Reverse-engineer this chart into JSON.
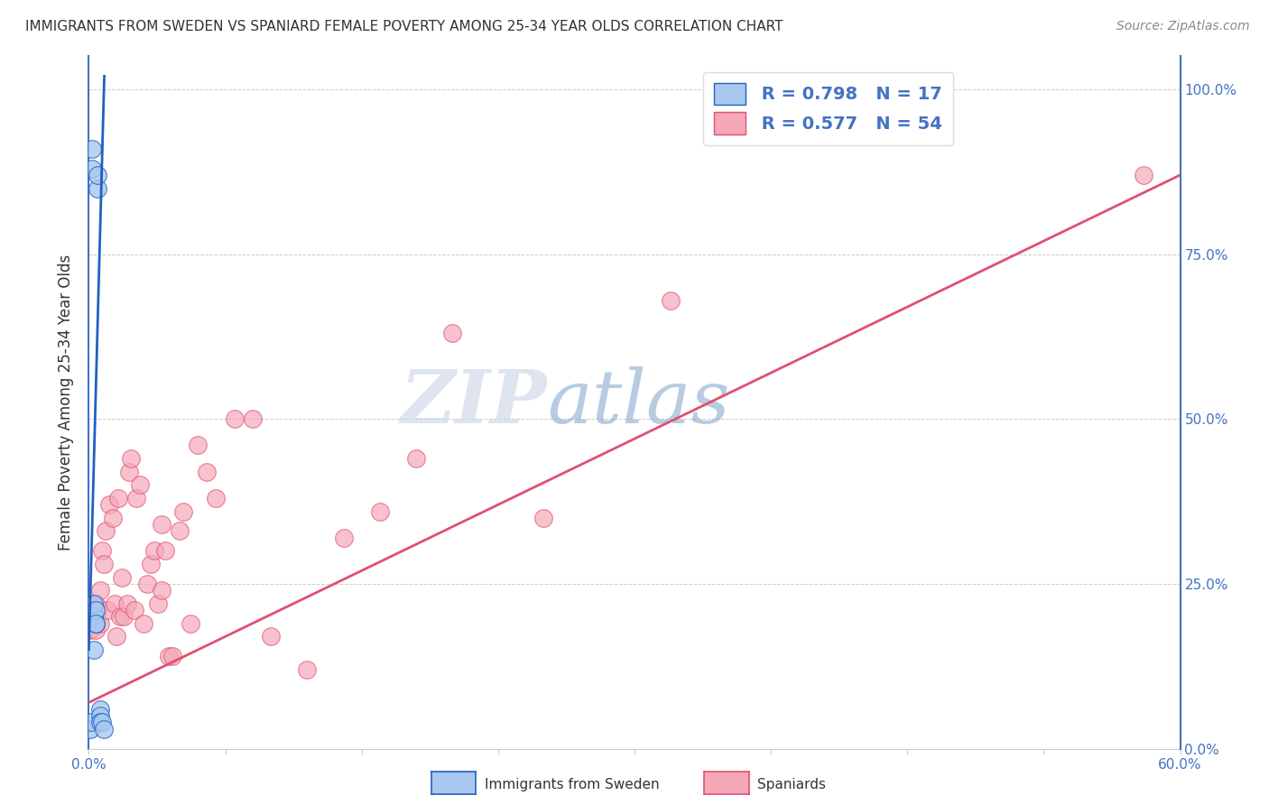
{
  "title": "IMMIGRANTS FROM SWEDEN VS SPANIARD FEMALE POVERTY AMONG 25-34 YEAR OLDS CORRELATION CHART",
  "source": "Source: ZipAtlas.com",
  "ylabel": "Female Poverty Among 25-34 Year Olds",
  "legend_blue_r": "R = 0.798",
  "legend_blue_n": "N = 17",
  "legend_pink_r": "R = 0.577",
  "legend_pink_n": "N = 54",
  "legend_label_blue": "Immigrants from Sweden",
  "legend_label_pink": "Spaniards",
  "blue_color": "#a8c8f0",
  "pink_color": "#f4a8b8",
  "trend_blue_color": "#2060c0",
  "trend_pink_color": "#e05070",
  "watermark_zip": "ZIP",
  "watermark_atlas": "atlas",
  "watermark_color_zip": "#c0d0e8",
  "watermark_color_atlas": "#80a8d8",
  "blue_scatter_x": [
    0.001,
    0.0015,
    0.002,
    0.002,
    0.003,
    0.003,
    0.003,
    0.004,
    0.004,
    0.004,
    0.005,
    0.005,
    0.006,
    0.006,
    0.006,
    0.007,
    0.008
  ],
  "blue_scatter_y": [
    0.03,
    0.04,
    0.88,
    0.91,
    0.2,
    0.22,
    0.15,
    0.19,
    0.21,
    0.19,
    0.85,
    0.87,
    0.06,
    0.05,
    0.04,
    0.04,
    0.03
  ],
  "pink_scatter_x": [
    0.001,
    0.002,
    0.003,
    0.004,
    0.004,
    0.005,
    0.006,
    0.006,
    0.007,
    0.008,
    0.009,
    0.01,
    0.011,
    0.013,
    0.014,
    0.015,
    0.016,
    0.017,
    0.018,
    0.019,
    0.021,
    0.022,
    0.023,
    0.025,
    0.026,
    0.028,
    0.03,
    0.032,
    0.034,
    0.036,
    0.038,
    0.04,
    0.04,
    0.042,
    0.044,
    0.046,
    0.05,
    0.052,
    0.056,
    0.06,
    0.065,
    0.07,
    0.08,
    0.09,
    0.1,
    0.12,
    0.14,
    0.16,
    0.18,
    0.2,
    0.25,
    0.32,
    0.44,
    0.58
  ],
  "pink_scatter_y": [
    0.18,
    0.2,
    0.2,
    0.22,
    0.18,
    0.21,
    0.24,
    0.19,
    0.3,
    0.28,
    0.33,
    0.21,
    0.37,
    0.35,
    0.22,
    0.17,
    0.38,
    0.2,
    0.26,
    0.2,
    0.22,
    0.42,
    0.44,
    0.21,
    0.38,
    0.4,
    0.19,
    0.25,
    0.28,
    0.3,
    0.22,
    0.24,
    0.34,
    0.3,
    0.14,
    0.14,
    0.33,
    0.36,
    0.19,
    0.46,
    0.42,
    0.38,
    0.5,
    0.5,
    0.17,
    0.12,
    0.32,
    0.36,
    0.44,
    0.63,
    0.35,
    0.68,
    0.98,
    0.87
  ],
  "blue_trend_x": [
    0.0,
    0.0085
  ],
  "blue_trend_y": [
    0.15,
    1.02
  ],
  "pink_trend_x": [
    0.0,
    0.6
  ],
  "pink_trend_y": [
    0.07,
    0.87
  ],
  "xlim": [
    0.0,
    0.6
  ],
  "ylim": [
    0.0,
    1.05
  ],
  "ytick_values": [
    0.0,
    0.25,
    0.5,
    0.75,
    1.0
  ],
  "ytick_labels": [
    "0%",
    "25.0%",
    "50.0%",
    "75.0%",
    "100.0%"
  ],
  "xtick_left_label": "0.0%",
  "xtick_right_label": "60.0%",
  "figsize": [
    14.06,
    8.92
  ],
  "dpi": 100,
  "background_color": "#ffffff",
  "title_color": "#333333",
  "source_color": "#888888",
  "axis_color": "#4472c4",
  "grid_color": "#cccccc"
}
